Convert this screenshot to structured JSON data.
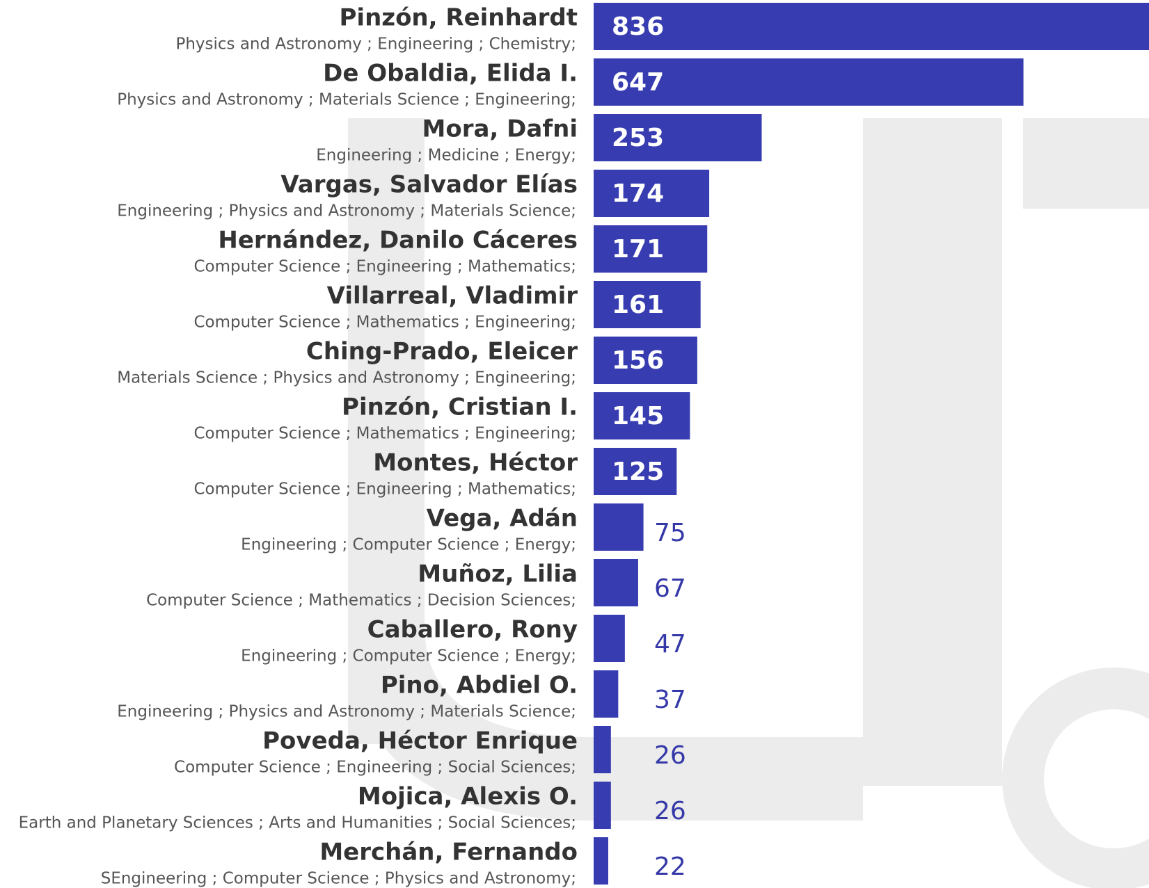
{
  "chart_data": {
    "type": "barh",
    "color": "#373cb0",
    "categories": [
      "Pinzón, Reinhardt",
      "De Obaldia, Elida I.",
      "Mora, Dafni",
      "Vargas, Salvador Elías",
      "Hernández, Danilo Cáceres",
      "Villarreal, Vladimir",
      "Ching-Prado, Eleicer",
      "Pinzón, Cristian I.",
      "Montes, Héctor",
      "Vega, Adán",
      "Muñoz, Lilia",
      "Caballero, Rony",
      "Pino, Abdiel O.",
      "Poveda, Héctor Enrique",
      "Mojica, Alexis O.",
      "Merchán, Fernando"
    ],
    "subjects": [
      "Physics and Astronomy ; Engineering ; Chemistry;",
      "Physics and Astronomy ; Materials Science ; Engineering;",
      "Engineering ; Medicine ; Energy;",
      "Engineering ; Physics and Astronomy ; Materials Science;",
      "Computer Science ; Engineering ; Mathematics;",
      "Computer Science ; Mathematics ; Engineering;",
      "Materials Science ; Physics and Astronomy ; Engineering;",
      "Computer Science ; Mathematics ; Engineering;",
      "Computer Science ; Engineering ; Mathematics;",
      "Engineering ; Computer Science ; Energy;",
      "Computer Science ; Mathematics ; Decision Sciences;",
      "Engineering ; Computer Science ; Energy;",
      "Engineering ; Physics and Astronomy ; Materials Science;",
      "Computer Science ; Engineering ; Social Sciences;",
      "Earth and Planetary Sciences ; Arts and Humanities ; Social Sciences;",
      "SEngineering ; Computer Science ; Physics and Astronomy;"
    ],
    "values": [
      836,
      647,
      253,
      174,
      171,
      161,
      156,
      145,
      125,
      75,
      67,
      47,
      37,
      26,
      26,
      22
    ]
  }
}
